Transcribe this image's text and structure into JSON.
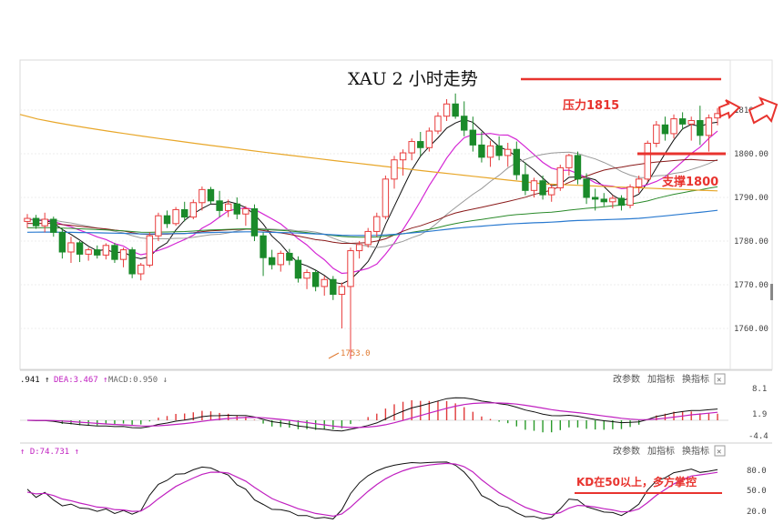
{
  "chart_data": {
    "type": "candlestick",
    "title": "XAU 2 小时走势",
    "y_ticks": [
      "1810.00",
      "1800.00",
      "1790.00",
      "1780.00",
      "1770.00",
      "1760.00"
    ],
    "ylim": [
      1751,
      1818
    ],
    "low_marker": "1753.0",
    "annotations": {
      "resistance": "压力1815",
      "support": "支撑1800",
      "kd_note": "KD在50以上，多方掌控"
    },
    "levels": {
      "resistance": 1815,
      "support": 1800
    },
    "macd": {
      "dif_label": ".941 ↑",
      "dea_label": "DEA:3.467 ↑",
      "macd_label": "MACD:0.950 ↓",
      "y_ticks": [
        "8.1",
        "1.9",
        "-4.4"
      ]
    },
    "kd": {
      "d_label": "↑ D:74.731 ↑",
      "y_ticks": [
        "80.0",
        "50.0",
        "20.0"
      ]
    },
    "panel_buttons": [
      "改参数",
      "加指标",
      "换指标"
    ],
    "candles": [
      [
        1784.5,
        1786.2,
        1783.0,
        1785.2
      ],
      [
        1785.2,
        1786.0,
        1782.8,
        1783.5
      ],
      [
        1783.5,
        1786.5,
        1782.0,
        1785.0
      ],
      [
        1785.0,
        1785.6,
        1781.0,
        1782.0
      ],
      [
        1782.0,
        1783.0,
        1776.0,
        1777.5
      ],
      [
        1777.5,
        1781.0,
        1775.0,
        1779.6
      ],
      [
        1779.6,
        1780.0,
        1775.2,
        1777.0
      ],
      [
        1777.0,
        1778.5,
        1775.5,
        1778.0
      ],
      [
        1778.0,
        1779.0,
        1776.0,
        1776.8
      ],
      [
        1776.8,
        1779.5,
        1775.8,
        1779.0
      ],
      [
        1779.0,
        1779.6,
        1775.0,
        1775.8
      ],
      [
        1775.8,
        1778.5,
        1774.0,
        1778.0
      ],
      [
        1778.0,
        1778.6,
        1771.5,
        1772.5
      ],
      [
        1772.5,
        1775.0,
        1771.0,
        1774.5
      ],
      [
        1774.5,
        1782.0,
        1774.0,
        1781.2
      ],
      [
        1781.2,
        1786.5,
        1780.0,
        1785.8
      ],
      [
        1785.8,
        1787.0,
        1783.0,
        1784.0
      ],
      [
        1784.0,
        1787.8,
        1783.5,
        1787.2
      ],
      [
        1787.2,
        1789.0,
        1784.5,
        1785.5
      ],
      [
        1785.5,
        1789.5,
        1785.0,
        1788.8
      ],
      [
        1788.8,
        1792.5,
        1787.0,
        1791.8
      ],
      [
        1791.8,
        1792.4,
        1788.5,
        1789.2
      ],
      [
        1789.2,
        1791.5,
        1785.5,
        1787.0
      ],
      [
        1787.0,
        1789.5,
        1785.5,
        1788.5
      ],
      [
        1788.5,
        1790.0,
        1785.0,
        1786.2
      ],
      [
        1786.2,
        1788.0,
        1783.5,
        1787.4
      ],
      [
        1787.4,
        1788.4,
        1780.0,
        1781.2
      ],
      [
        1781.2,
        1782.0,
        1772.0,
        1776.2
      ],
      [
        1776.2,
        1778.0,
        1773.5,
        1774.6
      ],
      [
        1774.6,
        1777.8,
        1773.0,
        1777.2
      ],
      [
        1777.2,
        1778.2,
        1774.5,
        1775.6
      ],
      [
        1775.6,
        1776.5,
        1770.5,
        1771.5
      ],
      [
        1771.5,
        1773.5,
        1769.0,
        1772.8
      ],
      [
        1772.8,
        1773.5,
        1768.5,
        1769.6
      ],
      [
        1769.6,
        1772.0,
        1767.5,
        1771.2
      ],
      [
        1771.2,
        1772.0,
        1766.5,
        1767.8
      ],
      [
        1767.8,
        1770.5,
        1760.0,
        1769.6
      ],
      [
        1769.6,
        1778.5,
        1753.0,
        1777.8
      ],
      [
        1777.8,
        1780.0,
        1776.0,
        1779.2
      ],
      [
        1779.2,
        1783.0,
        1778.5,
        1782.2
      ],
      [
        1782.2,
        1786.5,
        1781.0,
        1785.6
      ],
      [
        1785.6,
        1795.0,
        1785.0,
        1794.2
      ],
      [
        1794.2,
        1799.5,
        1792.0,
        1798.6
      ],
      [
        1798.6,
        1801.0,
        1795.0,
        1800.2
      ],
      [
        1800.2,
        1803.5,
        1798.5,
        1802.8
      ],
      [
        1802.8,
        1805.0,
        1799.5,
        1801.4
      ],
      [
        1801.4,
        1806.0,
        1800.5,
        1805.2
      ],
      [
        1805.2,
        1809.5,
        1804.5,
        1808.6
      ],
      [
        1808.6,
        1812.5,
        1807.5,
        1811.4
      ],
      [
        1811.4,
        1813.8,
        1808.0,
        1808.6
      ],
      [
        1808.6,
        1812.0,
        1804.0,
        1805.4
      ],
      [
        1805.4,
        1808.5,
        1800.5,
        1802.0
      ],
      [
        1802.0,
        1805.0,
        1798.0,
        1799.2
      ],
      [
        1799.2,
        1803.0,
        1797.0,
        1801.8
      ],
      [
        1801.8,
        1804.0,
        1798.5,
        1799.6
      ],
      [
        1799.6,
        1802.5,
        1797.0,
        1801.0
      ],
      [
        1801.0,
        1802.8,
        1794.0,
        1795.2
      ],
      [
        1795.2,
        1798.0,
        1790.5,
        1791.6
      ],
      [
        1791.6,
        1794.5,
        1790.0,
        1793.8
      ],
      [
        1793.8,
        1795.0,
        1789.5,
        1790.6
      ],
      [
        1790.6,
        1793.0,
        1789.0,
        1792.2
      ],
      [
        1792.2,
        1797.5,
        1791.5,
        1796.8
      ],
      [
        1796.8,
        1800.0,
        1795.0,
        1799.6
      ],
      [
        1799.6,
        1800.5,
        1793.0,
        1794.2
      ],
      [
        1794.2,
        1795.5,
        1788.5,
        1790.0
      ],
      [
        1790.0,
        1792.0,
        1787.0,
        1789.6
      ],
      [
        1789.6,
        1791.0,
        1788.0,
        1789.0
      ],
      [
        1789.0,
        1790.5,
        1787.5,
        1789.8
      ],
      [
        1789.8,
        1790.5,
        1787.0,
        1788.2
      ],
      [
        1788.2,
        1793.0,
        1787.5,
        1792.4
      ],
      [
        1792.4,
        1795.0,
        1791.0,
        1794.2
      ],
      [
        1794.2,
        1803.0,
        1793.5,
        1802.4
      ],
      [
        1802.4,
        1807.5,
        1801.5,
        1806.6
      ],
      [
        1806.6,
        1808.5,
        1803.0,
        1804.6
      ],
      [
        1804.6,
        1809.0,
        1803.5,
        1808.0
      ],
      [
        1808.0,
        1809.5,
        1805.5,
        1806.8
      ],
      [
        1806.8,
        1808.5,
        1803.0,
        1807.6
      ],
      [
        1807.6,
        1811.0,
        1802.0,
        1804.2
      ],
      [
        1804.2,
        1809.0,
        1800.5,
        1808.2
      ],
      [
        1808.2,
        1810.5,
        1806.5,
        1809.2
      ]
    ]
  }
}
